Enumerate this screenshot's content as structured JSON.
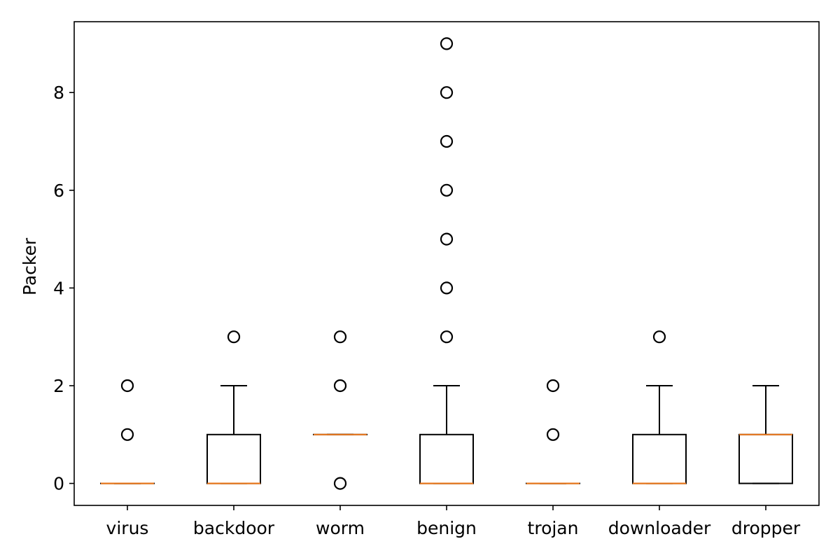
{
  "chart_data": {
    "type": "box",
    "ylabel": "Packer",
    "xlabel": "",
    "title": "",
    "ylim": [
      -0.45,
      9.45
    ],
    "yticks": [
      0,
      2,
      4,
      6,
      8
    ],
    "ytick_labels": [
      "0",
      "2",
      "4",
      "6",
      "8"
    ],
    "categories": [
      "virus",
      "backdoor",
      "worm",
      "benign",
      "trojan",
      "downloader",
      "dropper"
    ],
    "boxes": [
      {
        "category": "virus",
        "whisker_low": 0,
        "q1": 0,
        "median": 0,
        "q3": 0,
        "whisker_high": 0,
        "outliers": [
          1,
          2
        ]
      },
      {
        "category": "backdoor",
        "whisker_low": 0,
        "q1": 0,
        "median": 0,
        "q3": 1,
        "whisker_high": 2,
        "outliers": [
          3
        ]
      },
      {
        "category": "worm",
        "whisker_low": 1,
        "q1": 1,
        "median": 1,
        "q3": 1,
        "whisker_high": 1,
        "outliers": [
          0,
          2,
          3
        ]
      },
      {
        "category": "benign",
        "whisker_low": 0,
        "q1": 0,
        "median": 0,
        "q3": 1,
        "whisker_high": 2,
        "outliers": [
          3,
          4,
          5,
          6,
          7,
          8,
          9
        ]
      },
      {
        "category": "trojan",
        "whisker_low": 0,
        "q1": 0,
        "median": 0,
        "q3": 0,
        "whisker_high": 0,
        "outliers": [
          1,
          2
        ]
      },
      {
        "category": "downloader",
        "whisker_low": 0,
        "q1": 0,
        "median": 0,
        "q3": 1,
        "whisker_high": 2,
        "outliers": [
          3
        ]
      },
      {
        "category": "dropper",
        "whisker_low": 0,
        "q1": 0,
        "median": 1,
        "q3": 1,
        "whisker_high": 2,
        "outliers": []
      }
    ],
    "grid": false,
    "colors": {
      "median": "#e8791f",
      "box": "#000000",
      "outlier": "#000000"
    }
  }
}
